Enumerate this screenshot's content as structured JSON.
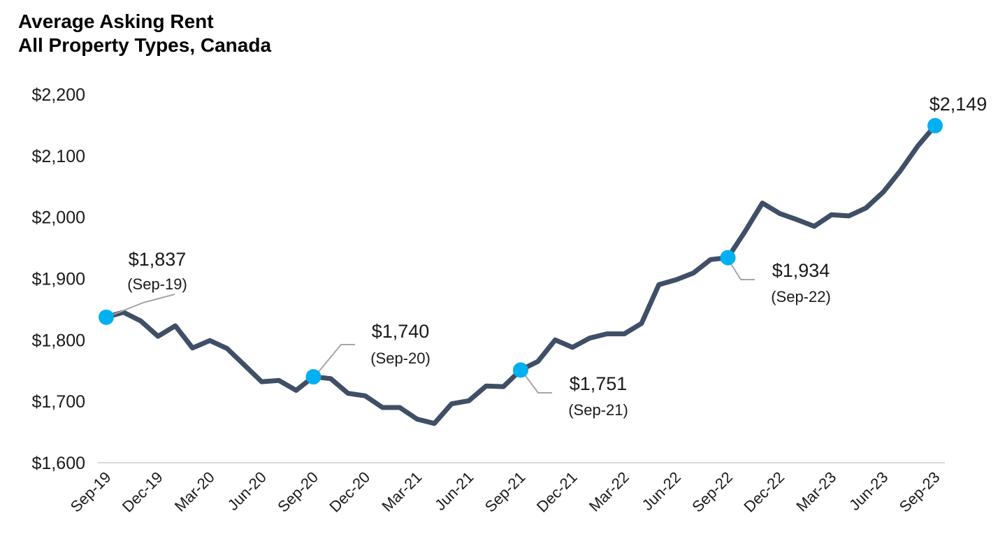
{
  "chart_data": {
    "type": "line",
    "title": "Average Asking Rent",
    "subtitle": "All Property Types, Canada",
    "xlabel": "",
    "ylabel": "",
    "ylim": [
      1600,
      2200
    ],
    "yticks": [
      "$1,600",
      "$1,700",
      "$1,800",
      "$1,900",
      "$2,000",
      "$2,100",
      "$2,200"
    ],
    "ytick_values": [
      1600,
      1700,
      1800,
      1900,
      2000,
      2100,
      2200
    ],
    "xtick_labels": [
      "Sep-19",
      "Dec-19",
      "Mar-20",
      "Jun-20",
      "Sep-20",
      "Dec-20",
      "Mar-21",
      "Jun-21",
      "Sep-21",
      "Dec-21",
      "Mar-22",
      "Jun-22",
      "Sep-22",
      "Dec-22",
      "Mar-23",
      "Jun-23",
      "Sep-23"
    ],
    "grid": false,
    "line_color": "#3e4f66",
    "marker_color": "#00b0f0",
    "x": [
      "Sep-19",
      "Oct-19",
      "Nov-19",
      "Dec-19",
      "Jan-20",
      "Feb-20",
      "Mar-20",
      "Apr-20",
      "May-20",
      "Jun-20",
      "Jul-20",
      "Aug-20",
      "Sep-20",
      "Oct-20",
      "Nov-20",
      "Dec-20",
      "Jan-21",
      "Feb-21",
      "Mar-21",
      "Apr-21",
      "May-21",
      "Jun-21",
      "Jul-21",
      "Aug-21",
      "Sep-21",
      "Oct-21",
      "Nov-21",
      "Dec-21",
      "Jan-22",
      "Feb-22",
      "Mar-22",
      "Apr-22",
      "May-22",
      "Jun-22",
      "Jul-22",
      "Aug-22",
      "Sep-22",
      "Oct-22",
      "Nov-22",
      "Dec-22",
      "Jan-23",
      "Feb-23",
      "Mar-23",
      "Apr-23",
      "May-23",
      "Jun-23",
      "Jul-23",
      "Aug-23",
      "Sep-23"
    ],
    "values": [
      1837,
      1845,
      1831,
      1806,
      1823,
      1787,
      1799,
      1786,
      1759,
      1732,
      1734,
      1718,
      1740,
      1737,
      1713,
      1709,
      1690,
      1690,
      1671,
      1664,
      1696,
      1701,
      1725,
      1724,
      1751,
      1765,
      1800,
      1788,
      1803,
      1810,
      1810,
      1827,
      1890,
      1898,
      1909,
      1931,
      1934,
      1977,
      2023,
      2006,
      1996,
      1985,
      2004,
      2002,
      2015,
      2041,
      2076,
      2116,
      2149
    ],
    "annotations": [
      {
        "index": 0,
        "value_label": "$1,837",
        "date_label": "(Sep-19)"
      },
      {
        "index": 12,
        "value_label": "$1,740",
        "date_label": "(Sep-20)"
      },
      {
        "index": 24,
        "value_label": "$1,751",
        "date_label": "(Sep-21)"
      },
      {
        "index": 36,
        "value_label": "$1,934",
        "date_label": "(Sep-22)"
      },
      {
        "index": 48,
        "value_label": "$2,149",
        "date_label": ""
      }
    ]
  }
}
